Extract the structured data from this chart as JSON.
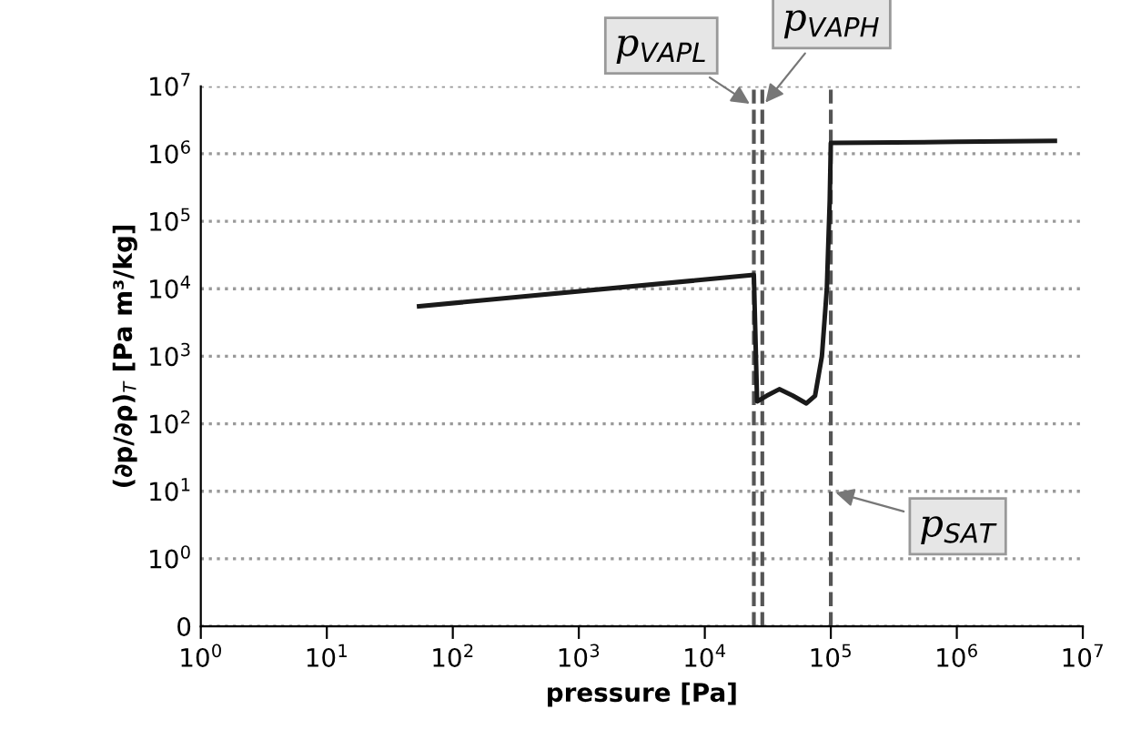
{
  "chart_data": {
    "type": "line",
    "xlabel": "pressure [Pa]",
    "ylabel": "(∂p/∂ρ)$_{T}$ [Pa m³/kg]",
    "log": "xy",
    "grid": "y",
    "line_style": "solid",
    "marker": "none",
    "xlim": [
      1,
      10000000
    ],
    "ylim": [
      0.1,
      10000000
    ],
    "xticks": [
      {
        "value": 1,
        "label": "10$^{0}$"
      },
      {
        "value": 10,
        "label": "10$^{1}$"
      },
      {
        "value": 100,
        "label": "10$^{2}$"
      },
      {
        "value": 1000,
        "label": "10$^{3}$"
      },
      {
        "value": 10000,
        "label": "10$^{4}$"
      },
      {
        "value": 100000,
        "label": "10$^{5}$"
      },
      {
        "value": 1000000,
        "label": "10$^{6}$"
      },
      {
        "value": 10000000,
        "label": "10$^{7}$"
      }
    ],
    "yticks": [
      {
        "value": 0.1,
        "label": "0"
      },
      {
        "value": 1,
        "label": "10$^{0}$"
      },
      {
        "value": 10,
        "label": "10$^{1}$"
      },
      {
        "value": 100,
        "label": "10$^{2}$"
      },
      {
        "value": 1000,
        "label": "10$^{3}$"
      },
      {
        "value": 10000,
        "label": "10$^{4}$"
      },
      {
        "value": 100000,
        "label": "10$^{5}$"
      },
      {
        "value": 1000000,
        "label": "10$^{6}$"
      },
      {
        "value": 10000000,
        "label": "10$^{7}$"
      }
    ],
    "series": [
      {
        "color": "#1a1a1a",
        "x": [
          54,
          24500,
          26000,
          31000,
          39000,
          50000,
          64000,
          75000,
          85000,
          93000,
          98000,
          100000,
          1000000,
          6000000
        ],
        "values": [
          5500,
          16000,
          214,
          260,
          325,
          260,
          200,
          260,
          1000,
          10000,
          200000,
          1450000,
          1500000,
          1550000
        ]
      }
    ],
    "ref_lines": [
      {
        "axis": "x",
        "value": 24500,
        "color": "#555555",
        "line_style": "dashed"
      },
      {
        "axis": "x",
        "value": 28600,
        "color": "#555555",
        "line_style": "dashed"
      },
      {
        "axis": "x",
        "value": 100000,
        "color": "#555555",
        "line_style": "dashed"
      }
    ],
    "annotations": [
      {
        "text": "p$_{VAPL}$",
        "x": 24500,
        "y": 5000000
      },
      {
        "text": "p$_{VAPH}$",
        "x": 28600,
        "y": 5000000
      },
      {
        "text": "p$_{SAT}$",
        "x": 100000,
        "y": 10
      }
    ]
  }
}
